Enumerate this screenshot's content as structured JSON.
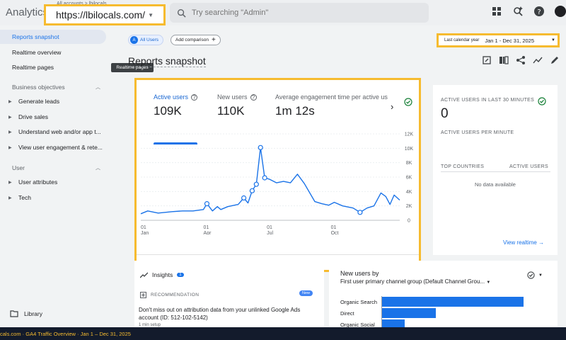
{
  "app": {
    "title": "Analytics",
    "account_breadcrumb": "All accounts > lbilocals"
  },
  "property": {
    "url": "https://lbilocals.com/"
  },
  "search": {
    "placeholder": "Try searching \"Admin\""
  },
  "sidebar": {
    "top_items": [
      {
        "label": "Reports snapshot",
        "active": true
      },
      {
        "label": "Realtime overview"
      },
      {
        "label": "Realtime pages"
      }
    ],
    "sections": [
      {
        "title": "Business objectives",
        "items": [
          "Generate leads",
          "Drive sales",
          "Understand web and/or app t...",
          "View user engagement & rete..."
        ]
      },
      {
        "title": "User",
        "items": [
          "User attributes",
          "Tech"
        ]
      }
    ],
    "library_label": "Library"
  },
  "tooltip": "Realtime pages",
  "toolbar": {
    "comparison_chip": "All Users",
    "comparison_badge": "A",
    "add_comparison": "Add comparison",
    "date_label": "Last calendar year",
    "date_range": "Jan 1 - Dec 31, 2025"
  },
  "page": {
    "title": "Reports snapshot"
  },
  "metrics": [
    {
      "label": "Active users",
      "value": "109K",
      "active": true
    },
    {
      "label": "New users",
      "value": "110K"
    },
    {
      "label": "Average engagement time per active us",
      "value": "1m 12s"
    }
  ],
  "chart_data": {
    "type": "line",
    "x_tick_labels": [
      {
        "day": "01",
        "month": "Jan"
      },
      {
        "day": "01",
        "month": "Apr"
      },
      {
        "day": "01",
        "month": "Jul"
      },
      {
        "day": "01",
        "month": "Oct"
      }
    ],
    "y_ticks": [
      "0",
      "2K",
      "4K",
      "6K",
      "8K",
      "10K",
      "12K"
    ],
    "ylim": [
      0,
      12000
    ],
    "series": [
      {
        "color": "#1a73e8",
        "points": [
          [
            0,
            900
          ],
          [
            10,
            1300
          ],
          [
            25,
            1000
          ],
          [
            45,
            1200
          ],
          [
            60,
            1300
          ],
          [
            75,
            1300
          ],
          [
            90,
            1500
          ],
          [
            95,
            2300
          ],
          [
            103,
            1300
          ],
          [
            110,
            1900
          ],
          [
            115,
            1500
          ],
          [
            125,
            1900
          ],
          [
            140,
            2200
          ],
          [
            148,
            3100
          ],
          [
            154,
            2400
          ],
          [
            160,
            4100
          ],
          [
            166,
            5000
          ],
          [
            172,
            10100
          ],
          [
            178,
            5900
          ],
          [
            185,
            5700
          ],
          [
            195,
            5200
          ],
          [
            205,
            5400
          ],
          [
            215,
            5200
          ],
          [
            225,
            6400
          ],
          [
            235,
            5100
          ],
          [
            250,
            2600
          ],
          [
            260,
            2300
          ],
          [
            270,
            2100
          ],
          [
            278,
            2500
          ],
          [
            290,
            2000
          ],
          [
            305,
            1700
          ],
          [
            315,
            1100
          ],
          [
            325,
            1700
          ],
          [
            335,
            2000
          ],
          [
            345,
            3800
          ],
          [
            352,
            3300
          ],
          [
            358,
            2200
          ],
          [
            364,
            3500
          ],
          [
            372,
            2800
          ]
        ],
        "markers": [
          95,
          148,
          160,
          166,
          172,
          178,
          315
        ]
      }
    ]
  },
  "realtime": {
    "title": "ACTIVE USERS IN LAST 30 MINUTES",
    "value": "0",
    "subtitle": "ACTIVE USERS PER MINUTE",
    "col1": "TOP COUNTRIES",
    "col2": "ACTIVE USERS",
    "empty": "No data available",
    "link": "View realtime"
  },
  "insights": {
    "title": "Insights",
    "count": "1",
    "recommendation_label": "RECOMMENDATION",
    "new_badge": "New",
    "text": "Don't miss out on attribution data from your unlinked Google Ads account (ID: 512-102-5142)",
    "muted": "1 min setup"
  },
  "new_users_card": {
    "title": "New users by",
    "subtitle": "First user primary channel group (Default Channel Grou...",
    "bars": [
      {
        "label": "Organic Search",
        "value": 1.0
      },
      {
        "label": "Direct",
        "value": 0.38
      },
      {
        "label": "Organic Social",
        "value": 0.16
      }
    ]
  },
  "status_bar": {
    "text": "cals.com  ·  GA4 Traffic Overview  ·  Jan 1 – Dec 31, 2025"
  }
}
